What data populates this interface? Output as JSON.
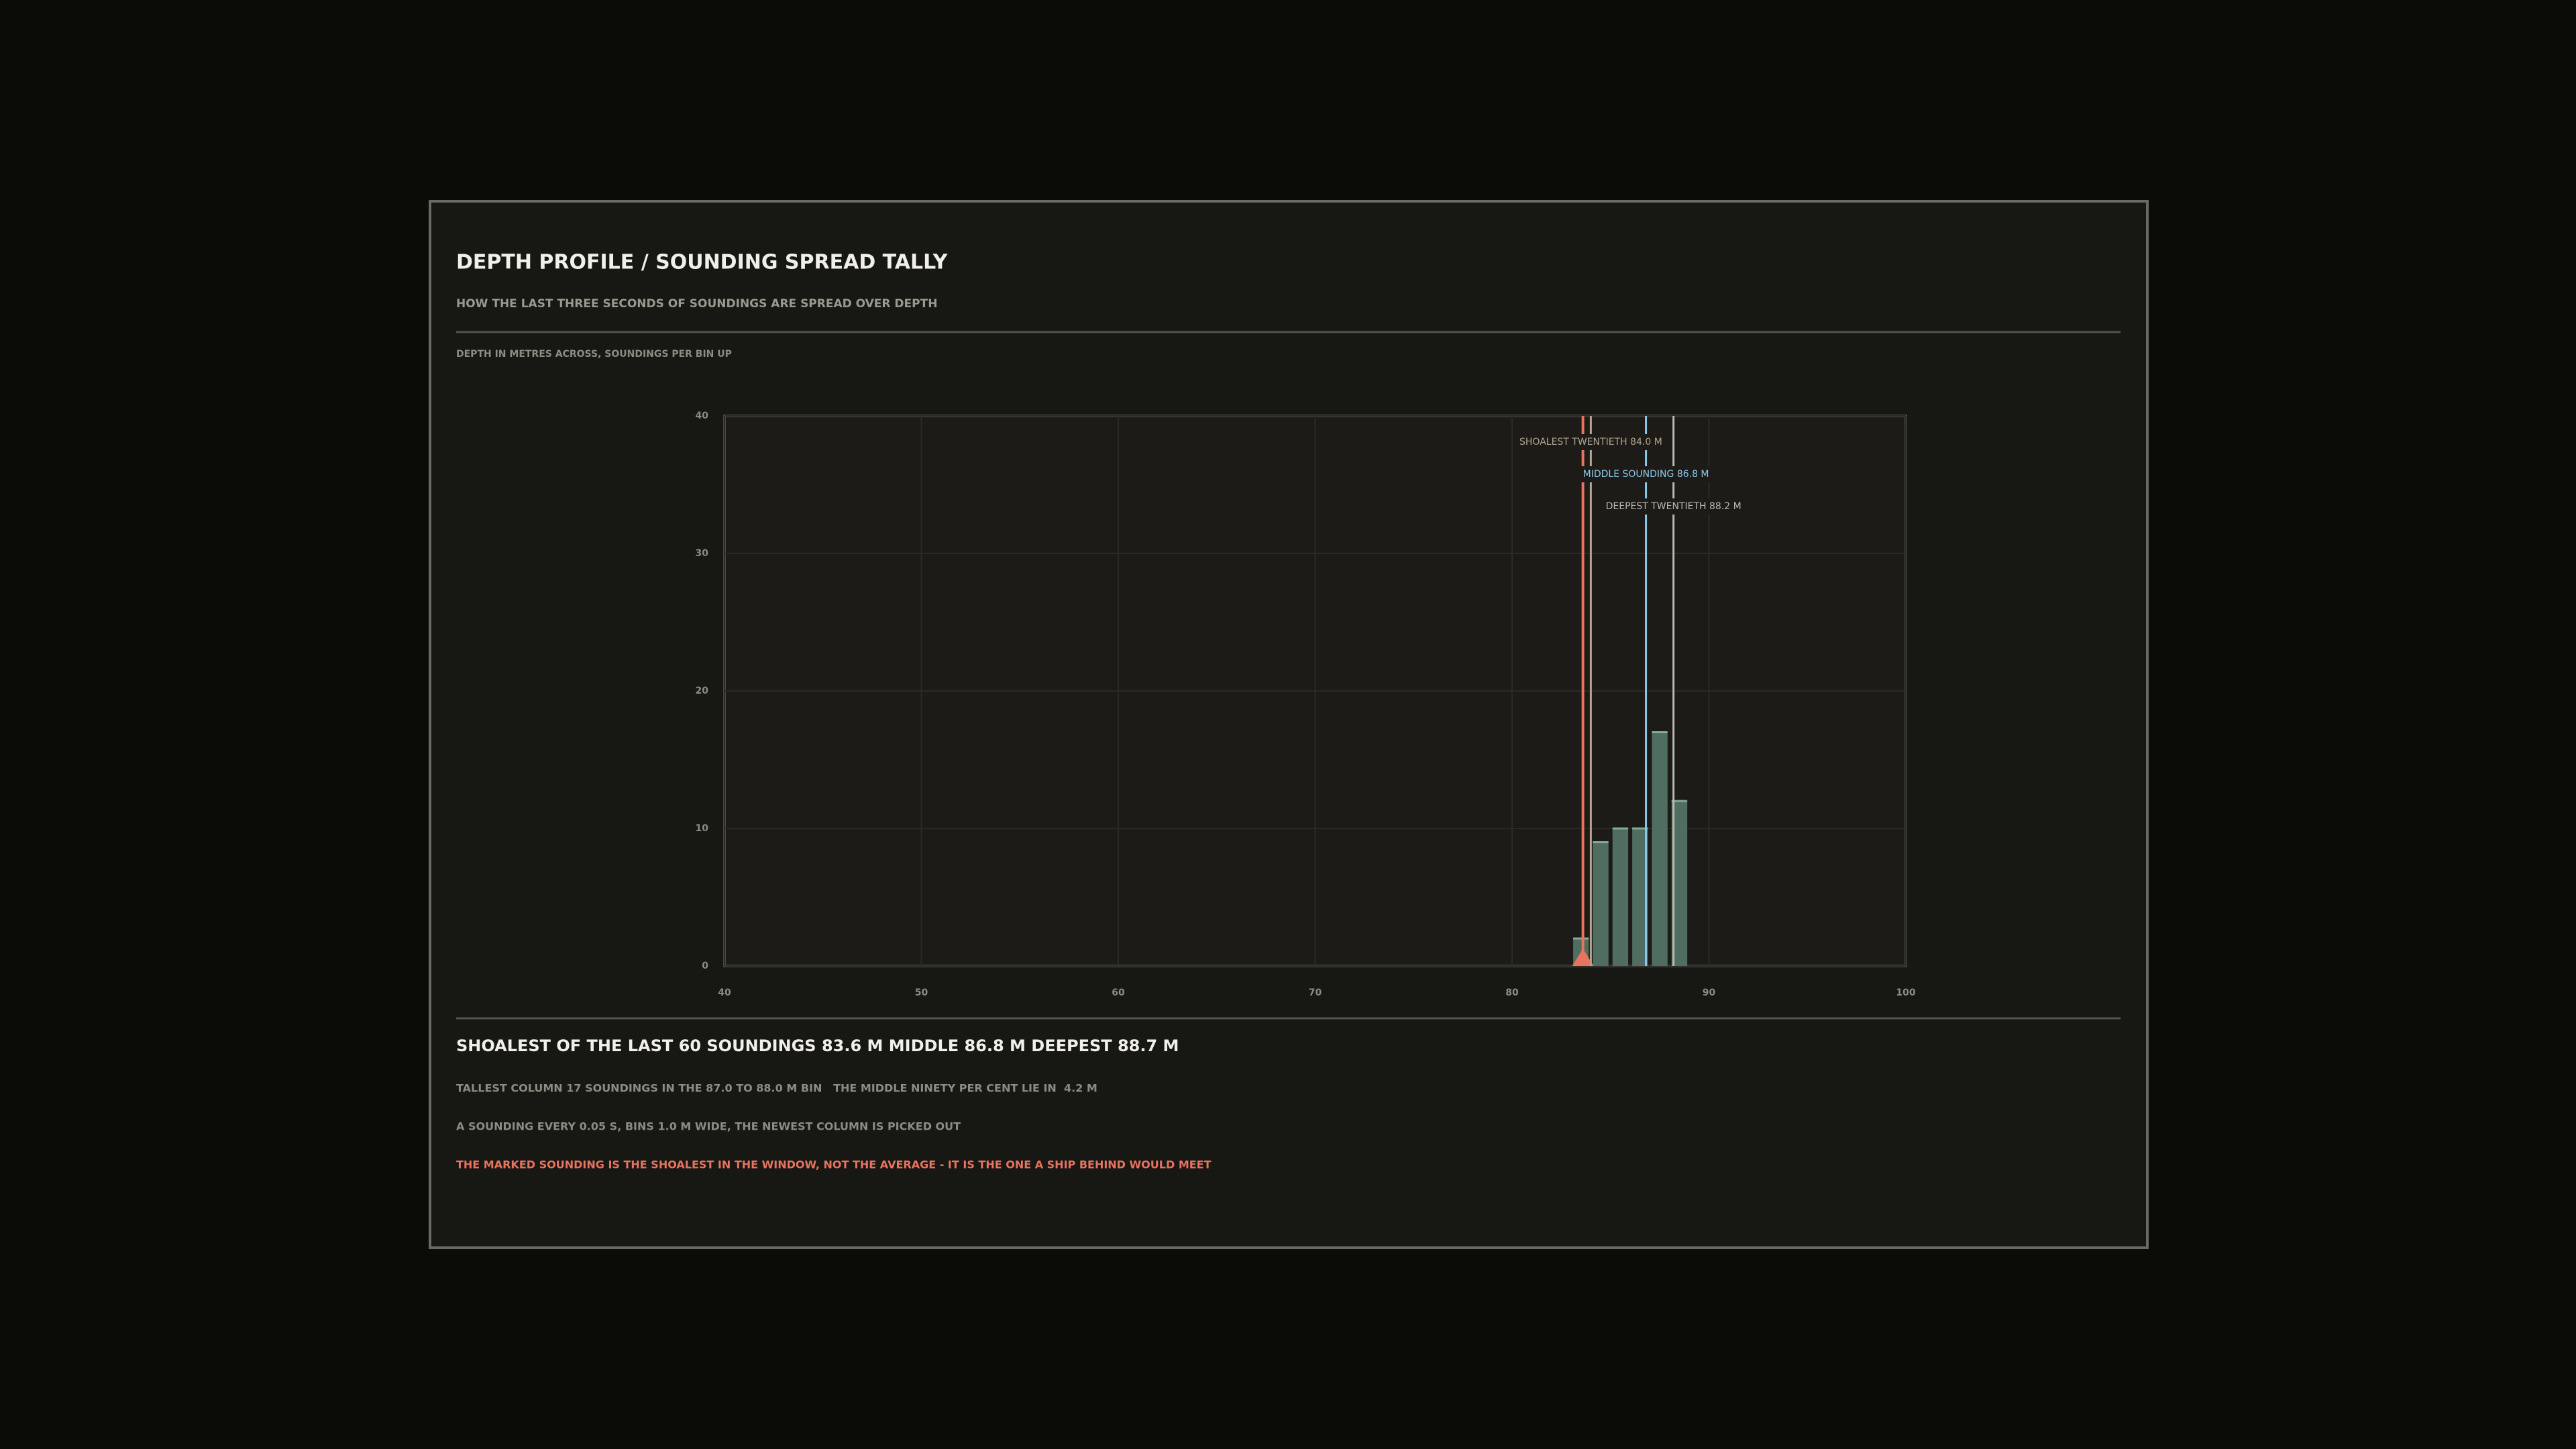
{
  "header": {
    "title": "DEPTH PROFILE / SOUNDING SPREAD TALLY",
    "subtitle": "HOW THE LAST THREE SECONDS OF SOUNDINGS ARE SPREAD OVER DEPTH"
  },
  "chart_data": {
    "type": "histogram",
    "axis_caption": "DEPTH IN METRES ACROSS, SOUNDINGS PER BIN UP",
    "bins": [
      83,
      84,
      85,
      86,
      87,
      88,
      89
    ],
    "values": [
      2,
      9,
      10,
      10,
      17,
      12
    ],
    "color": "#4f6d60",
    "edge_color": "#86ab98",
    "xlim": [
      40,
      100
    ],
    "xticks": [
      40,
      50,
      60,
      70,
      80,
      90,
      100
    ],
    "ylim": [
      0,
      40
    ],
    "yticks": [
      0,
      10,
      20,
      30,
      40
    ],
    "grid": true,
    "markers": [
      {
        "value": 83.6,
        "color": "#e8735f"
      },
      {
        "name": "SHOALEST TWENTIETH",
        "value": 84.0,
        "label": "84.0 M",
        "color": "#b3a58f"
      },
      {
        "name": "MIDDLE SOUNDING",
        "value": 86.8,
        "label": "86.8 M",
        "color": "#8ec8e8"
      },
      {
        "name": "DEEPEST TWENTIETH",
        "value": 88.2,
        "label": "88.2 M",
        "color": "#b9b9b0"
      }
    ]
  },
  "summary": {
    "parts": [
      "SHOALEST OF THE LAST 60 SOUNDINGS",
      "83.6 M",
      "MIDDLE",
      "86.8 M",
      "DEEPEST",
      "88.7 M"
    ],
    "lines": [
      "TALLEST COLUMN 17 SOUNDINGS IN THE 87.0 TO 88.0 M BIN   THE MIDDLE NINETY PER CENT LIE IN  4.2 M",
      "A SOUNDING EVERY 0.05 S, BINS 1.0 M WIDE, THE NEWEST COLUMN IS PICKED OUT"
    ],
    "warning": "THE MARKED SOUNDING IS THE SHOALEST IN THE WINDOW, NOT THE AVERAGE - IT IS THE ONE A SHIP BEHIND WOULD MEET"
  }
}
